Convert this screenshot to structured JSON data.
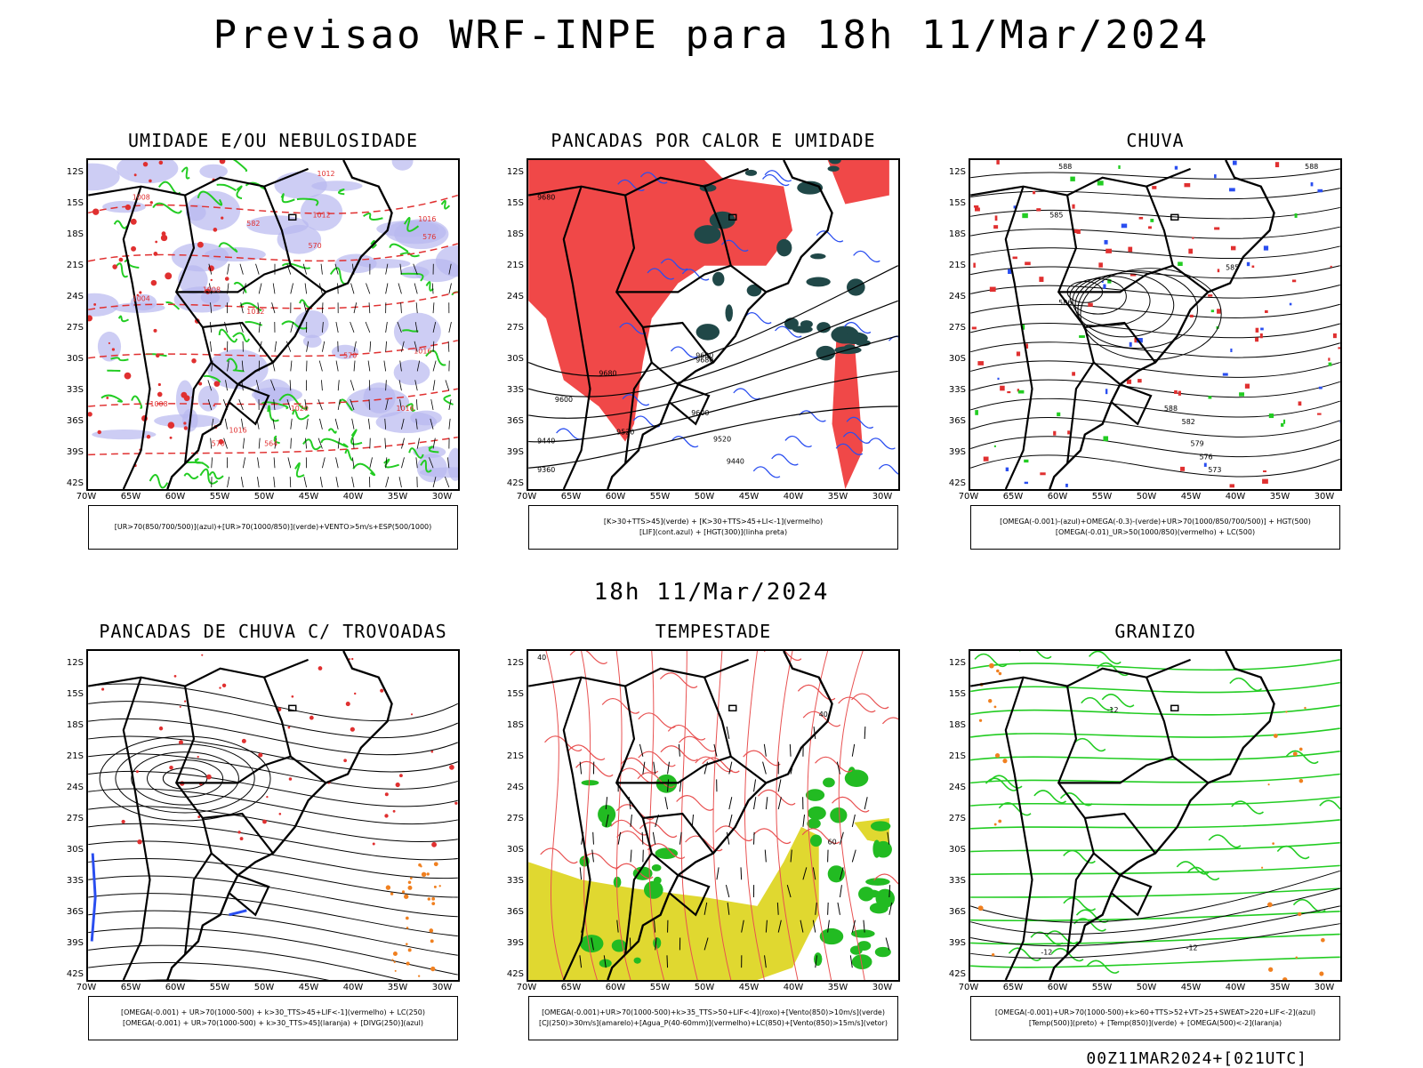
{
  "title": "Previsao WRF-INPE  para 18h 11/Mar/2024",
  "mid_date": "18h 11/Mar/2024",
  "footer": "00Z11MAR2024+[021UTC]",
  "lat_labels": [
    "12S",
    "15S",
    "18S",
    "21S",
    "24S",
    "27S",
    "30S",
    "33S",
    "36S",
    "39S",
    "42S"
  ],
  "lon_labels": [
    "70W",
    "65W",
    "60W",
    "55W",
    "50W",
    "45W",
    "40W",
    "35W",
    "30W"
  ],
  "panels": [
    {
      "title": "UMIDADE E/OU NEBULOSIDADE",
      "legend": [
        "[UR>70(850/700/500)](azul)+[UR>70(1000/850)](verde)+VENTO>5m/s+ESP(500/1000)"
      ],
      "theme": "humidity",
      "labels": [
        [
          "1008",
          50,
          45
        ],
        [
          "1012",
          255,
          65
        ],
        [
          "1016",
          375,
          70
        ],
        [
          "1012",
          260,
          18
        ],
        [
          "1008",
          130,
          150
        ],
        [
          "1012",
          180,
          175
        ],
        [
          "1016",
          370,
          220
        ],
        [
          "1020",
          230,
          285
        ],
        [
          "1016",
          350,
          285
        ],
        [
          "1004",
          50,
          160
        ],
        [
          "1008",
          70,
          280
        ],
        [
          "1016",
          160,
          310
        ],
        [
          "570",
          250,
          100
        ],
        [
          "576",
          380,
          90
        ],
        [
          "570",
          290,
          225
        ],
        [
          "564",
          200,
          325
        ],
        [
          "570",
          140,
          325
        ],
        [
          "582",
          180,
          75
        ]
      ]
    },
    {
      "title": "PANCADAS POR CALOR E UMIDADE",
      "legend": [
        "[K>30+TTS>45](verde) + [K>30+TTS>45+LI<-1](vermelho)",
        "[LIF](cont.azul) + [HGT(300)](linha preta)"
      ],
      "theme": "heat",
      "labels": [
        [
          "9680",
          80,
          245
        ],
        [
          "9680",
          190,
          230
        ],
        [
          "9600",
          185,
          290
        ],
        [
          "9520",
          210,
          320
        ],
        [
          "9440",
          225,
          345
        ],
        [
          "9600",
          30,
          275
        ],
        [
          "9520",
          100,
          312
        ],
        [
          "9440",
          10,
          322
        ],
        [
          "9360",
          10,
          355
        ],
        [
          "9680",
          10,
          45
        ],
        [
          "9680",
          190,
          225
        ]
      ]
    },
    {
      "title": "CHUVA",
      "legend": [
        "[OMEGA(-0.001)-(azul)+OMEGA(-0.3)-(verde)+UR>70(1000/850/700/500)] + HGT(500)",
        "[OMEGA(-0.01)_UR>50(1000/850)(vermelho) + LC(500)"
      ],
      "theme": "rain",
      "labels": [
        [
          "588",
          100,
          10
        ],
        [
          "585",
          90,
          65
        ],
        [
          "585",
          290,
          125
        ],
        [
          "588",
          220,
          285
        ],
        [
          "582",
          240,
          300
        ],
        [
          "579",
          250,
          325
        ],
        [
          "576",
          260,
          340
        ],
        [
          "573",
          270,
          355
        ],
        [
          "588",
          380,
          10
        ],
        [
          "586",
          100,
          165
        ]
      ]
    },
    {
      "title": "PANCADAS DE CHUVA C/ TROVOADAS",
      "legend": [
        "[OMEGA(-0.001) + UR>70(1000-500) + k>30_TTS>45+LIF<-1](vermelho) + LC(250)",
        "[OMEGA(-0.001) + UR>70(1000-500) + k>30_TTS>45](laranja) + [DIVG(250)](azul)"
      ],
      "theme": "storm",
      "labels": []
    },
    {
      "title": "TEMPESTADE",
      "legend": [
        "[OMEGA(-0.001)+UR>70(1000-500)+k>35_TTS>50+LIF<-4](roxo)+[Vento(850)>10m/s](verde)",
        "[CJ(250)>30m/s](amarelo)+[Agua_P(40-60mm)](vermelho)+LC(850)+[Vento(850)>15m/s](vetor)"
      ],
      "theme": "tempest",
      "labels": [
        [
          "40",
          330,
          75
        ],
        [
          "60",
          340,
          220
        ],
        [
          "40",
          10,
          10
        ]
      ]
    },
    {
      "title": "GRANIZO",
      "legend": [
        "[OMEGA(-0.001)+UR>70(1000-500)+k>60+TTS>52+VT>25+SWEAT>220+LIF<-2](azul)",
        "[Temp(500)](preto) + [Temp(850)](verde) + [OMEGA(500)<-2](laranja)"
      ],
      "theme": "hail",
      "labels": [
        [
          "-12",
          80,
          345
        ],
        [
          "-12",
          245,
          340
        ],
        [
          "-12",
          155,
          70
        ]
      ]
    }
  ]
}
